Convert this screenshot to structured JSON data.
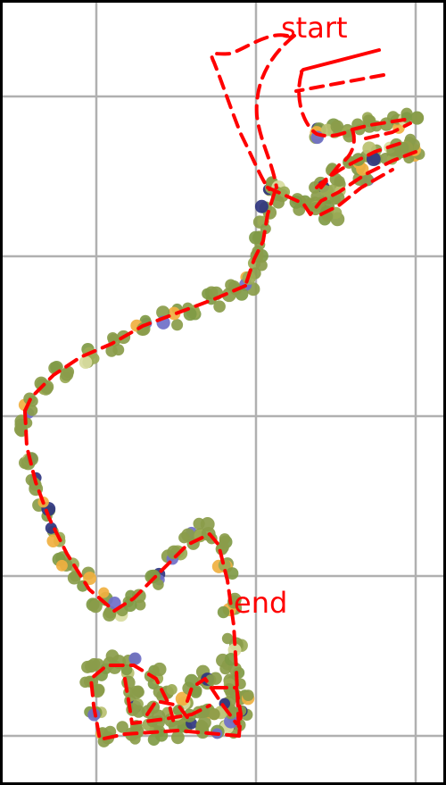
{
  "labels": {
    "start": "start",
    "end": "end"
  },
  "colors": {
    "route": "#ff0000",
    "grid": "#b0b0b0",
    "points": [
      "#8a9c4a",
      "#7f9a45",
      "#9aaa55",
      "#6f6fc8",
      "#2f3580",
      "#f0b040",
      "#d8dca0",
      "#b8c070"
    ]
  }
}
